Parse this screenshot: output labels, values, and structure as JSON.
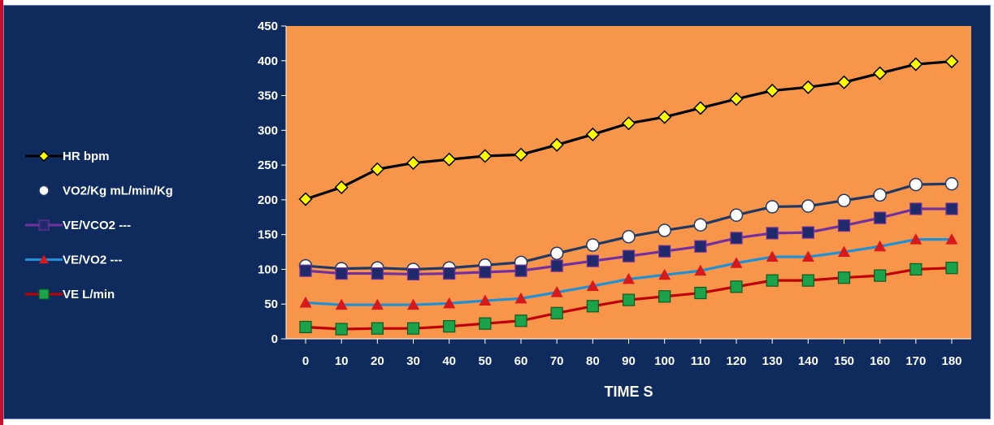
{
  "chart_data": {
    "type": "line",
    "title": "",
    "xlabel": "TIME S",
    "ylabel": "",
    "x": [
      0,
      10,
      20,
      30,
      40,
      50,
      60,
      70,
      80,
      90,
      100,
      110,
      120,
      130,
      140,
      150,
      160,
      170,
      180
    ],
    "xticks": [
      "0",
      "10",
      "20",
      "30",
      "40",
      "50",
      "60",
      "70",
      "80",
      "90",
      "100",
      "110",
      "120",
      "130",
      "140",
      "150",
      "160",
      "170",
      "180"
    ],
    "ylim": [
      0,
      450
    ],
    "yticks": [
      "0",
      "50",
      "100",
      "150",
      "200",
      "250",
      "300",
      "350",
      "400",
      "450"
    ],
    "grid": false,
    "legend_position": "left",
    "plot_background": "#f7964a",
    "series": [
      {
        "name": "HR bpm",
        "line_color": "#000000",
        "marker": "diamond",
        "marker_fill": "#ffff00",
        "marker_stroke": "#000000",
        "values": [
          201,
          218,
          244,
          253,
          258,
          263,
          265,
          279,
          294,
          310,
          319,
          332,
          345,
          357,
          362,
          369,
          382,
          395,
          399
        ]
      },
      {
        "name": "VO2/Kg mL/min/Kg",
        "line_color": "#1f3864",
        "marker": "circle",
        "marker_fill": "#ffffff",
        "marker_stroke": "#1f3864",
        "values": [
          105,
          101,
          102,
          100,
          102,
          106,
          110,
          123,
          135,
          147,
          156,
          164,
          178,
          190,
          191,
          199,
          207,
          222,
          223
        ]
      },
      {
        "name": "VE/VCO2 ---",
        "line_color": "#7030a0",
        "marker": "square",
        "marker_fill": "#1f2a6b",
        "marker_stroke": "#7030a0",
        "values": [
          98,
          94,
          94,
          93,
          94,
          96,
          98,
          105,
          112,
          119,
          126,
          133,
          145,
          152,
          153,
          163,
          174,
          187,
          187
        ]
      },
      {
        "name": "VE/VO2 ---",
        "line_color": "#1e90d6",
        "marker": "triangle",
        "marker_fill": "#d7191c",
        "marker_stroke": "#1e90d6",
        "values": [
          52,
          49,
          49,
          49,
          51,
          55,
          58,
          67,
          76,
          86,
          92,
          98,
          109,
          118,
          118,
          125,
          133,
          143,
          143
        ]
      },
      {
        "name": "VE L/min",
        "line_color": "#c00000",
        "marker": "square",
        "marker_fill": "#1aa34a",
        "marker_stroke": "#0b5a26",
        "values": [
          17,
          14,
          15,
          15,
          18,
          22,
          26,
          37,
          47,
          56,
          61,
          66,
          75,
          84,
          84,
          88,
          91,
          100,
          102
        ]
      }
    ]
  }
}
